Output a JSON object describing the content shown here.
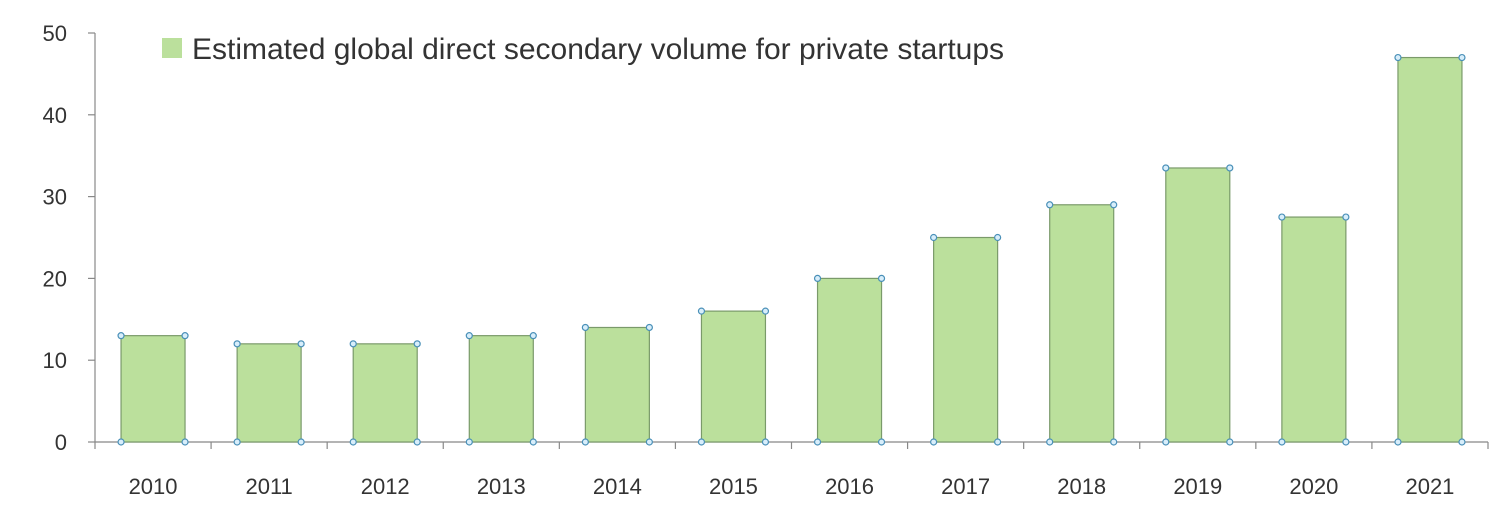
{
  "chart_data": {
    "type": "bar",
    "title": "",
    "xlabel": "",
    "ylabel": "",
    "categories": [
      "2010",
      "2011",
      "2012",
      "2013",
      "2014",
      "2015",
      "2016",
      "2017",
      "2018",
      "2019",
      "2020",
      "2021"
    ],
    "series": [
      {
        "name": "Estimated global direct secondary volume for private startups",
        "values": [
          13,
          12,
          12,
          13,
          14,
          16,
          20,
          25,
          29,
          33.5,
          27.5,
          47
        ],
        "color": "#bbe09c"
      }
    ],
    "ylim": [
      0,
      50
    ],
    "yticks": [
      "0",
      "10",
      "20",
      "30",
      "40",
      "50"
    ],
    "grid": false,
    "legend_position": "top-left"
  }
}
